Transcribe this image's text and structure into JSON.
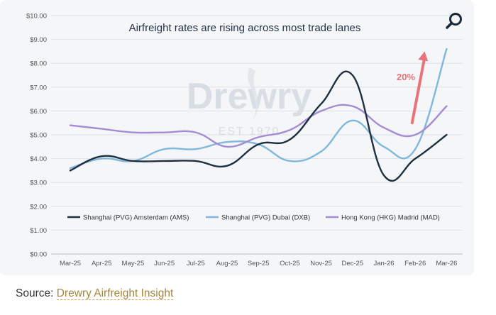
{
  "chart_data": {
    "type": "line",
    "title": "Airfreight rates are rising across most  trade lanes",
    "watermark": {
      "brand": "Drewry",
      "tagline": "EST 1970"
    },
    "categories": [
      "Mar-25",
      "Apr-25",
      "May-25",
      "Jun-25",
      "Jul-25",
      "Aug-25",
      "Sep-25",
      "Oct-25",
      "Nov-25",
      "Dec-25",
      "Jan-26",
      "Feb-26",
      "Mar-26"
    ],
    "y_ticks": [
      "$0.00",
      "$1.00",
      "$2.00",
      "$3.00",
      "$4.00",
      "$5.00",
      "$6.00",
      "$7.00",
      "$8.00",
      "$9.00",
      "$10.00"
    ],
    "ylim": [
      0,
      10
    ],
    "xlabel": "",
    "ylabel": "",
    "grid": "horizontal",
    "legend_position": "bottom",
    "series": [
      {
        "name": "Shanghai (PVG) Amsterdam (AMS)",
        "color": "#1f2f42",
        "values": [
          3.5,
          4.1,
          3.9,
          3.9,
          3.9,
          3.7,
          4.6,
          4.8,
          6.3,
          7.5,
          3.3,
          4.0,
          5.0
        ]
      },
      {
        "name": "Shanghai (PVG) Dubai (DXB)",
        "color": "#7fb8dc",
        "values": [
          3.6,
          4.0,
          3.9,
          4.4,
          4.4,
          4.7,
          4.6,
          3.9,
          4.3,
          5.6,
          4.5,
          4.4,
          8.6
        ]
      },
      {
        "name": "Hong Kong (HKG) Madrid (MAD)",
        "color": "#a58bd3",
        "values": [
          5.4,
          5.25,
          5.1,
          5.1,
          5.1,
          4.5,
          4.9,
          5.2,
          6.0,
          6.2,
          5.3,
          5.0,
          6.2
        ]
      }
    ],
    "annotation": {
      "text": "20%",
      "color": "#e8747a",
      "arrow_from": [
        10.9,
        5.5
      ],
      "arrow_to": [
        11.3,
        8.5
      ]
    }
  },
  "source": {
    "label": "Source:",
    "link_text": "Drewry Airfreight Insight"
  },
  "icons": {
    "zoom": "search-icon"
  }
}
